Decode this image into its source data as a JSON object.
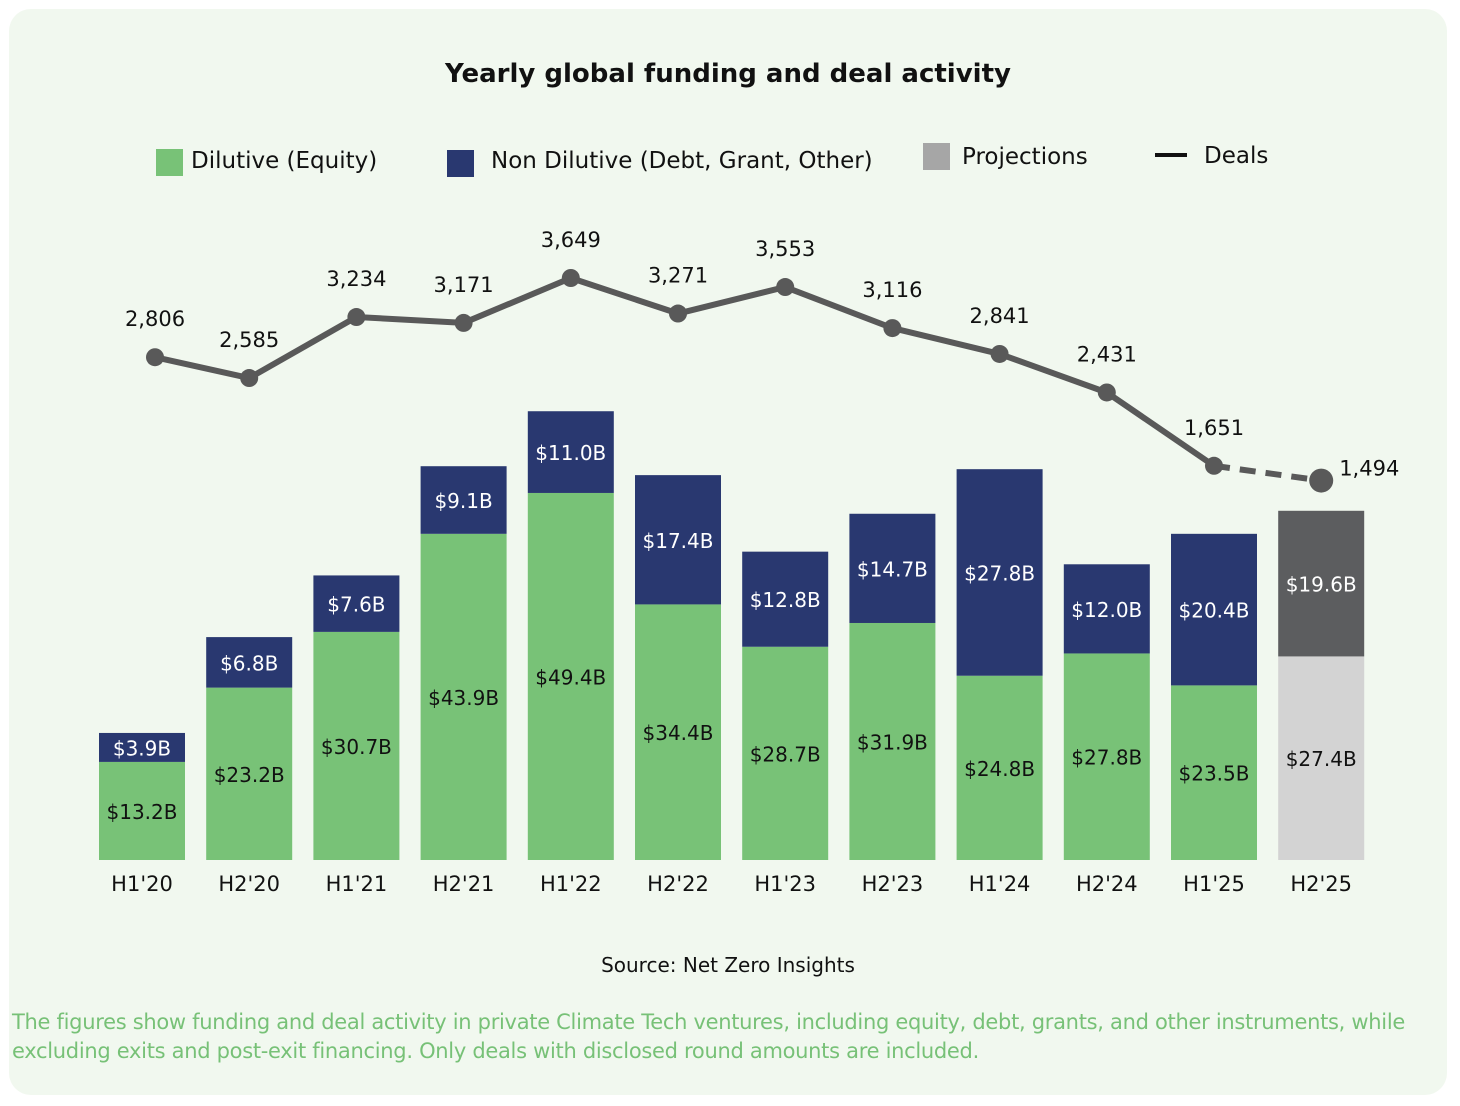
{
  "chart_data": {
    "type": "bar",
    "title": "Yearly global funding and deal activity",
    "stacked": true,
    "categories": [
      "H1'20",
      "H2'20",
      "H1'21",
      "H2'21",
      "H1'22",
      "H2'22",
      "H1'23",
      "H2'23",
      "H1'24",
      "H2'24",
      "H1'25",
      "H2'25"
    ],
    "series": [
      {
        "name": "Dilutive (Equity)",
        "values": [
          13.2,
          23.2,
          30.7,
          43.9,
          49.4,
          34.4,
          28.7,
          31.9,
          24.8,
          27.8,
          23.5,
          27.4
        ],
        "labels": [
          "$13.2B",
          "$23.2B",
          "$30.7B",
          "$43.9B",
          "$49.4B",
          "$34.4B",
          "$28.7B",
          "$31.9B",
          "$24.8B",
          "$27.8B",
          "$23.5B",
          "$27.4B"
        ],
        "color": "#78c277"
      },
      {
        "name": "Non Dilutive (Debt, Grant, Other)",
        "values": [
          3.9,
          6.8,
          7.6,
          9.1,
          11.0,
          17.4,
          12.8,
          14.7,
          27.8,
          12.0,
          20.4,
          19.6
        ],
        "labels": [
          "$3.9B",
          "$6.8B",
          "$7.6B",
          "$9.1B",
          "$11.0B",
          "$17.4B",
          "$12.8B",
          "$14.7B",
          "$27.8B",
          "$12.0B",
          "$20.4B",
          "$19.6B"
        ],
        "color": "#293870"
      },
      {
        "name": "Deals",
        "type": "line",
        "values": [
          2806,
          2585,
          3234,
          3171,
          3649,
          3271,
          3553,
          3116,
          2841,
          2431,
          1651,
          1494
        ],
        "labels": [
          "2,806",
          "2,585",
          "3,234",
          "3,171",
          "3,649",
          "3,271",
          "3,553",
          "3,116",
          "2,841",
          "2,431",
          "1,651",
          "1,494"
        ],
        "color": "#595959"
      }
    ],
    "projections": {
      "name": "Projections",
      "category": "H2'25",
      "colors": {
        "dilutive": "#d3d3d3",
        "non_dilutive": "#5c5d5f",
        "legend": "#a6a6a6"
      }
    },
    "legend_position": "top",
    "grid": false,
    "source": "Source: Net Zero Insights"
  },
  "note": "The figures show funding and deal activity in private Climate Tech ventures, including equity, debt, grants, and other instruments, while excluding exits and post-exit financing. Only deals with disclosed round amounts are included."
}
